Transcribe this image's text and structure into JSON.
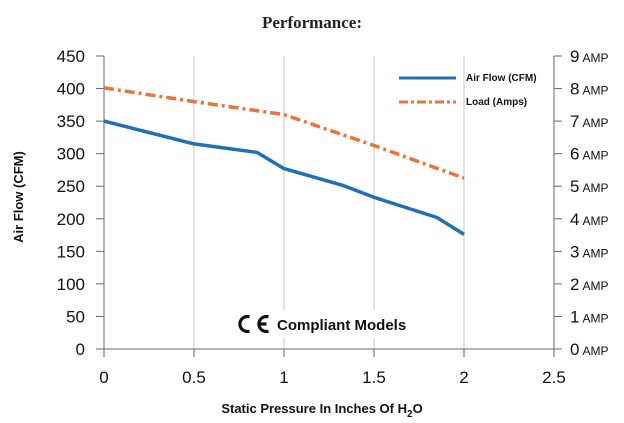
{
  "chart_data": {
    "type": "line",
    "title": "Performance:",
    "xlabel_main": "Static Pressure In Inches Of H",
    "xlabel_sub": "2",
    "xlabel_tail": "O",
    "ylabel_left": "Air Flow (CFM)",
    "xlim": [
      0,
      2.5
    ],
    "ylim_left": [
      0,
      450
    ],
    "ylim_right": [
      0,
      9
    ],
    "x_ticks": [
      "0",
      "0.5",
      "1",
      "1.5",
      "2",
      "2.5"
    ],
    "x_tick_values": [
      0,
      0.5,
      1,
      1.5,
      2,
      2.5
    ],
    "y_left_ticks": [
      "0",
      "50",
      "100",
      "150",
      "200",
      "250",
      "300",
      "350",
      "400",
      "450"
    ],
    "y_left_tick_values": [
      0,
      50,
      100,
      150,
      200,
      250,
      300,
      350,
      400,
      450
    ],
    "y_right_ticks": [
      "0 AMP",
      "1 AMP",
      "2 AMP",
      "3 AMP",
      "4 AMP",
      "5 AMP",
      "6 AMP",
      "7 AMP",
      "8 AMP",
      "9 AMP"
    ],
    "y_right_tick_values": [
      0,
      1,
      2,
      3,
      4,
      5,
      6,
      7,
      8,
      9
    ],
    "grid": "vertical",
    "legend_position": "top-right",
    "series": [
      {
        "name": "Air Flow (CFM)",
        "axis": "left",
        "color": "#1f6fb8",
        "style": "solid",
        "x": [
          0,
          0.5,
          0.85,
          1.0,
          1.33,
          1.5,
          1.85,
          2.0
        ],
        "y": [
          350,
          315,
          302,
          277,
          251,
          233,
          202,
          176
        ]
      },
      {
        "name": "Load (Amps)",
        "axis": "right",
        "color": "#e8743b",
        "style": "dash-dot",
        "x": [
          0,
          0.5,
          1.0,
          1.5,
          2.0
        ],
        "y": [
          8.02,
          7.6,
          7.2,
          6.25,
          5.25
        ]
      }
    ],
    "annotation": {
      "icon": "ce-mark",
      "text": "Compliant Models"
    }
  }
}
